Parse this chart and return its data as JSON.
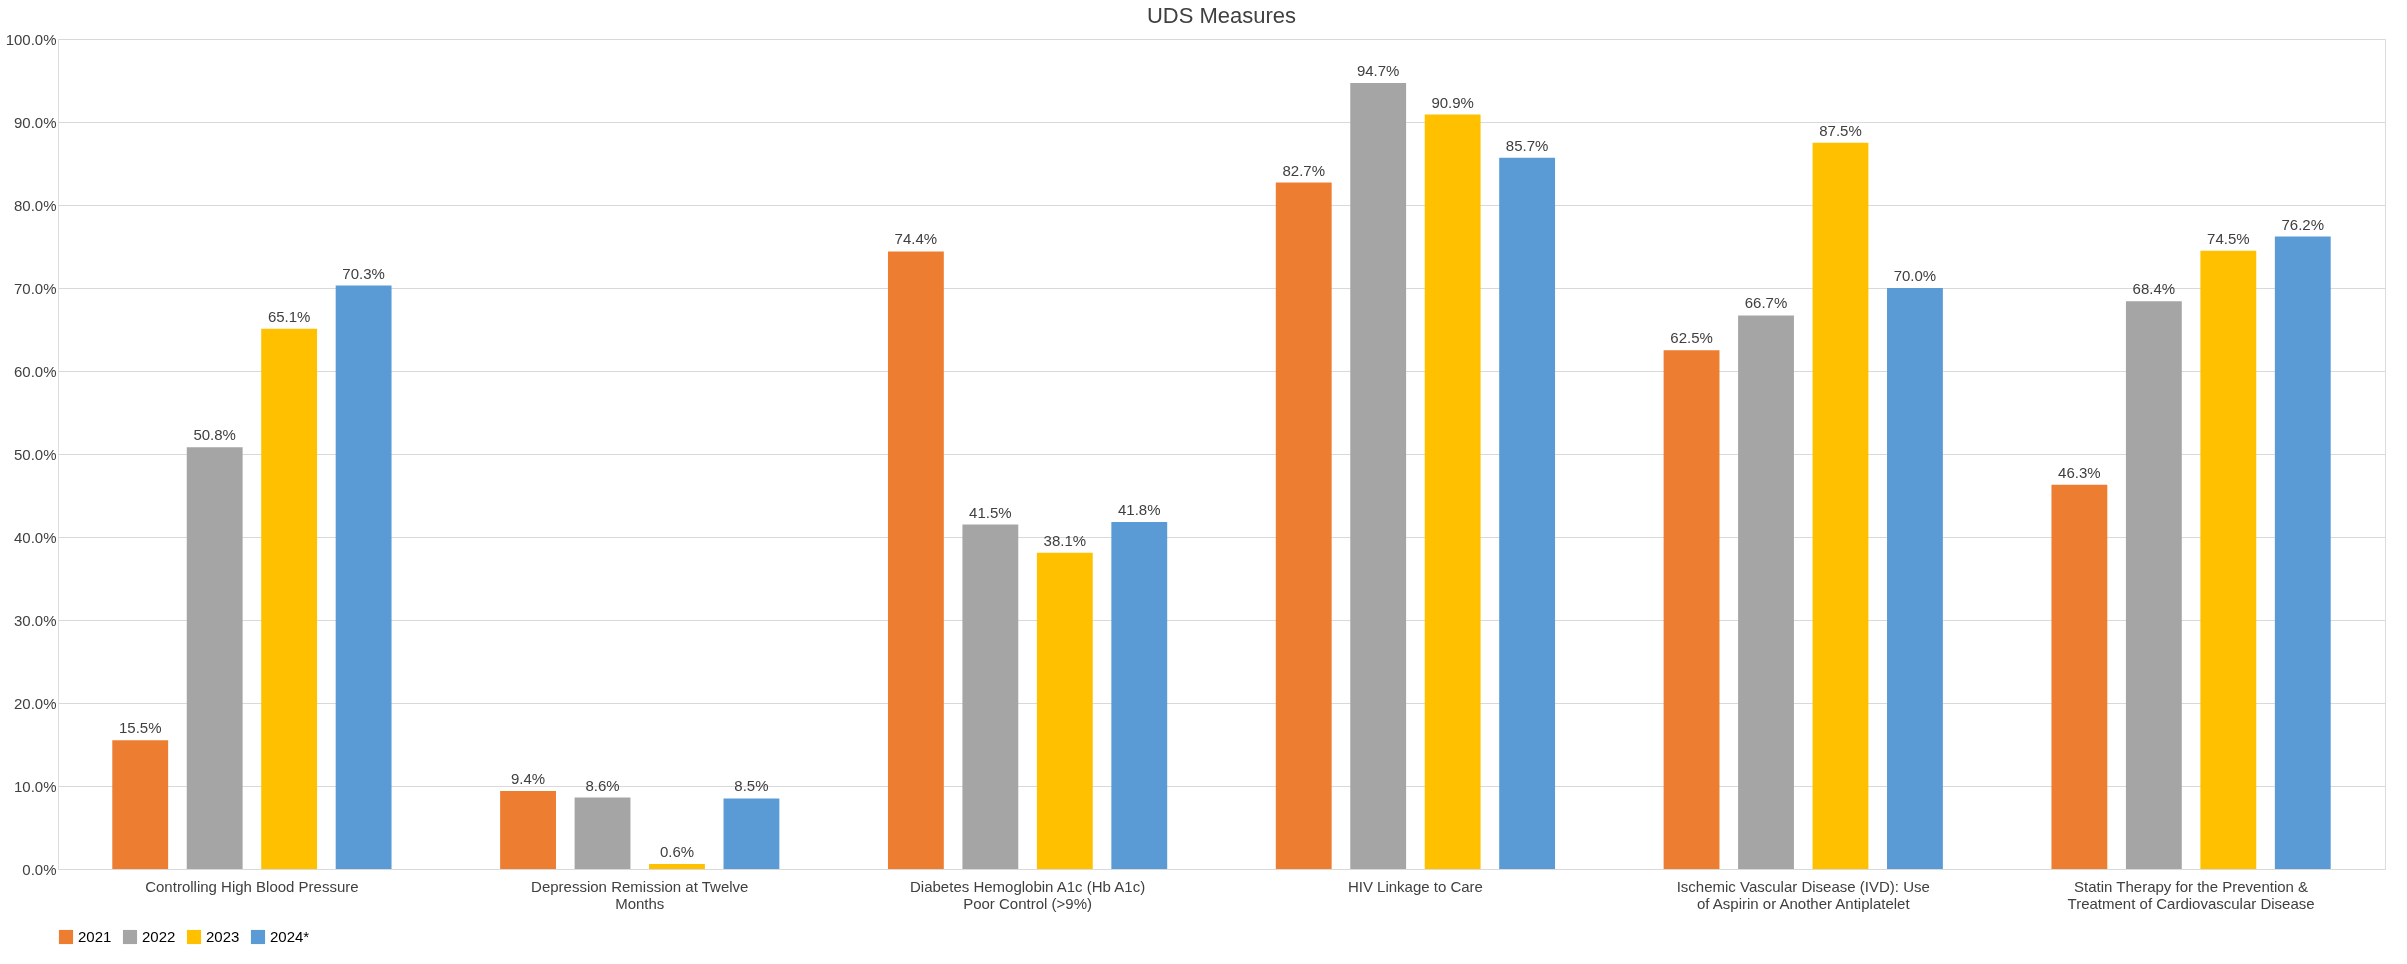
{
  "chart_data": {
    "type": "bar",
    "title": "UDS Measures",
    "categories": [
      "Controlling High Blood Pressure",
      "Depression Remission at Twelve Months",
      "Diabetes Hemoglobin A1c (Hb A1c) Poor Control (>9%)",
      "HIV Linkage to Care",
      "Ischemic Vascular Disease (IVD): Use of Aspirin or Another Antiplatelet",
      "Statin Therapy for the Prevention & Treatment of Cardiovascular Disease"
    ],
    "series": [
      {
        "name": "2021",
        "color": "#ed7d31",
        "values": [
          15.5,
          9.4,
          74.4,
          82.7,
          62.5,
          46.3
        ],
        "value_labels": [
          "15.5%",
          "9.4%",
          "74.4%",
          "82.7%",
          "62.5%",
          "46.3%"
        ]
      },
      {
        "name": "2022",
        "color": "#a5a5a5",
        "values": [
          50.8,
          8.6,
          41.5,
          94.7,
          66.7,
          68.4
        ],
        "value_labels": [
          "50.8%",
          "8.6%",
          "41.5%",
          "94.7%",
          "66.7%",
          "68.4%"
        ]
      },
      {
        "name": "2023",
        "color": "#ffc000",
        "values": [
          65.1,
          0.6,
          38.1,
          90.9,
          87.5,
          74.5
        ],
        "value_labels": [
          "65.1%",
          "0.6%",
          "38.1%",
          "90.9%",
          "87.5%",
          "74.5%"
        ]
      },
      {
        "name": "2024*",
        "color": "#5b9bd5",
        "values": [
          70.3,
          8.5,
          41.8,
          85.7,
          70.0,
          76.2
        ],
        "value_labels": [
          "70.3%",
          "8.5%",
          "41.8%",
          "85.7%",
          "70.0%",
          "76.2%"
        ]
      }
    ],
    "ylim": [
      0,
      100
    ],
    "yticks": [
      {
        "value": 0,
        "label": "0.0%"
      },
      {
        "value": 10,
        "label": "10.0%"
      },
      {
        "value": 20,
        "label": "20.0%"
      },
      {
        "value": 30,
        "label": "30.0%"
      },
      {
        "value": 40,
        "label": "40.0%"
      },
      {
        "value": 50,
        "label": "50.0%"
      },
      {
        "value": 60,
        "label": "60.0%"
      },
      {
        "value": 70,
        "label": "70.0%"
      },
      {
        "value": 80,
        "label": "80.0%"
      },
      {
        "value": 90,
        "label": "90.0%"
      },
      {
        "value": 100,
        "label": "100.0%"
      }
    ],
    "grid": "y",
    "legend": "bottom"
  }
}
